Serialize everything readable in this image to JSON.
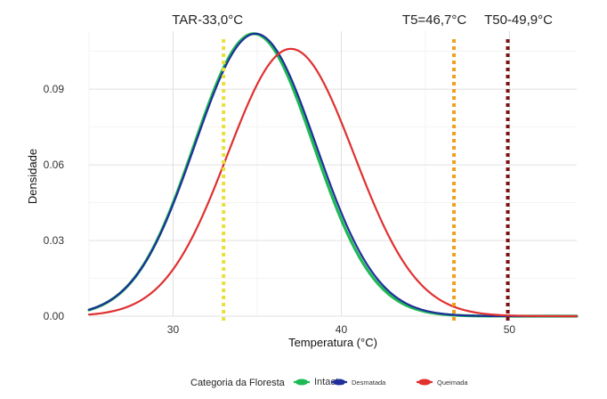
{
  "chart_data": {
    "type": "line",
    "title": "",
    "xlabel": "Temperatura (°C)",
    "ylabel": "Densidade",
    "xlim": [
      25,
      54
    ],
    "ylim": [
      0,
      0.113
    ],
    "x_ticks": [
      30,
      40,
      50
    ],
    "y_ticks": [
      0.0,
      0.03,
      0.06,
      0.09
    ],
    "x_tick_labels": [
      "30",
      "40",
      "50"
    ],
    "y_tick_labels": [
      "0.00",
      "0.03",
      "0.06",
      "0.09"
    ],
    "grid": true,
    "legend": {
      "position": "bottom",
      "title": "Categoria da Floresta"
    },
    "series": [
      {
        "name": "Intacta",
        "color": "#1db954",
        "mean": 34.8,
        "sd": 3.55,
        "peak": 0.112
      },
      {
        "name": "Desmatada",
        "color": "#1f2f9a",
        "mean": 34.9,
        "sd": 3.6,
        "peak": 0.112
      },
      {
        "name": "Queimada",
        "color": "#e03030",
        "mean": 37.0,
        "sd": 3.75,
        "peak": 0.106
      }
    ],
    "reference_lines": [
      {
        "label": "TAR-33,0°C",
        "x": 33.0,
        "color": "#e8e03a"
      },
      {
        "label": "T5=46,7°C",
        "x": 46.7,
        "color": "#f0a020"
      },
      {
        "label": "T50-49,9°C",
        "x": 49.9,
        "color": "#7a1010"
      }
    ]
  }
}
